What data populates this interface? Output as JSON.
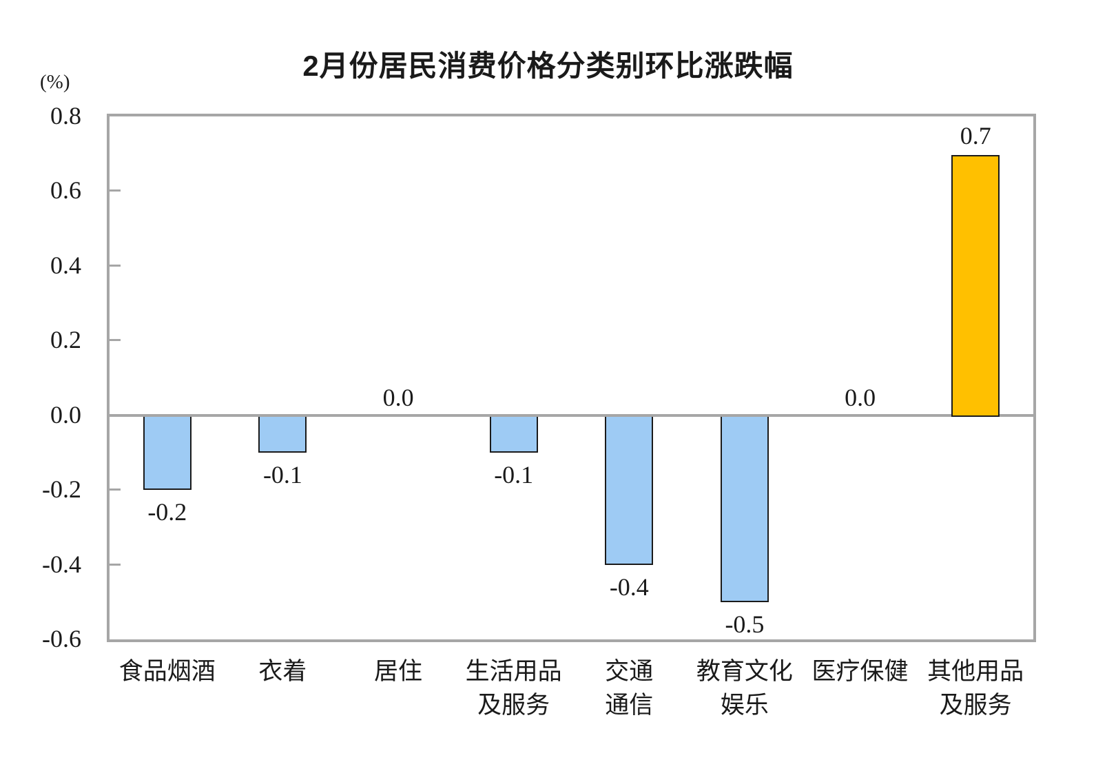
{
  "chart_data": {
    "type": "bar",
    "title": "2月份居民消费价格分类别环比涨跌幅",
    "unit_label": "(%)",
    "categories": [
      "食品烟酒",
      "衣着",
      "居住",
      "生活用品及服务",
      "交通通信",
      "教育文化娱乐",
      "医疗保健",
      "其他用品及服务"
    ],
    "category_display": [
      "食品烟酒",
      "衣着",
      "居住",
      "生活用品\n及服务",
      "交通\n通信",
      "教育文化\n娱乐",
      "医疗保健",
      "其他用品\n及服务"
    ],
    "values": [
      -0.2,
      -0.1,
      0.0,
      -0.1,
      -0.4,
      -0.5,
      0.0,
      0.7
    ],
    "value_labels": [
      "-0.2",
      "-0.1",
      "0.0",
      "-0.1",
      "-0.4",
      "-0.5",
      "0.0",
      "0.7"
    ],
    "xlabel": "",
    "ylabel": "(%)",
    "ylim": [
      -0.6,
      0.8
    ],
    "ytick_step": 0.2,
    "ytick_labels": [
      "0.8",
      "0.6",
      "0.4",
      "0.2",
      "0.0",
      "-0.2",
      "-0.4",
      "-0.6"
    ],
    "inner_tick_values": [
      0.6,
      0.4,
      0.2,
      -0.2,
      -0.4
    ],
    "grid": false,
    "legend": "none",
    "colors": {
      "negative_bar_fill": "#9ECBF4",
      "positive_bar_fill": "#FFC000",
      "bar_border": "#1A1A1A",
      "frame": "#A6A6A6",
      "zero_line": "#A6A6A6",
      "text": "#1A1A1A"
    }
  }
}
